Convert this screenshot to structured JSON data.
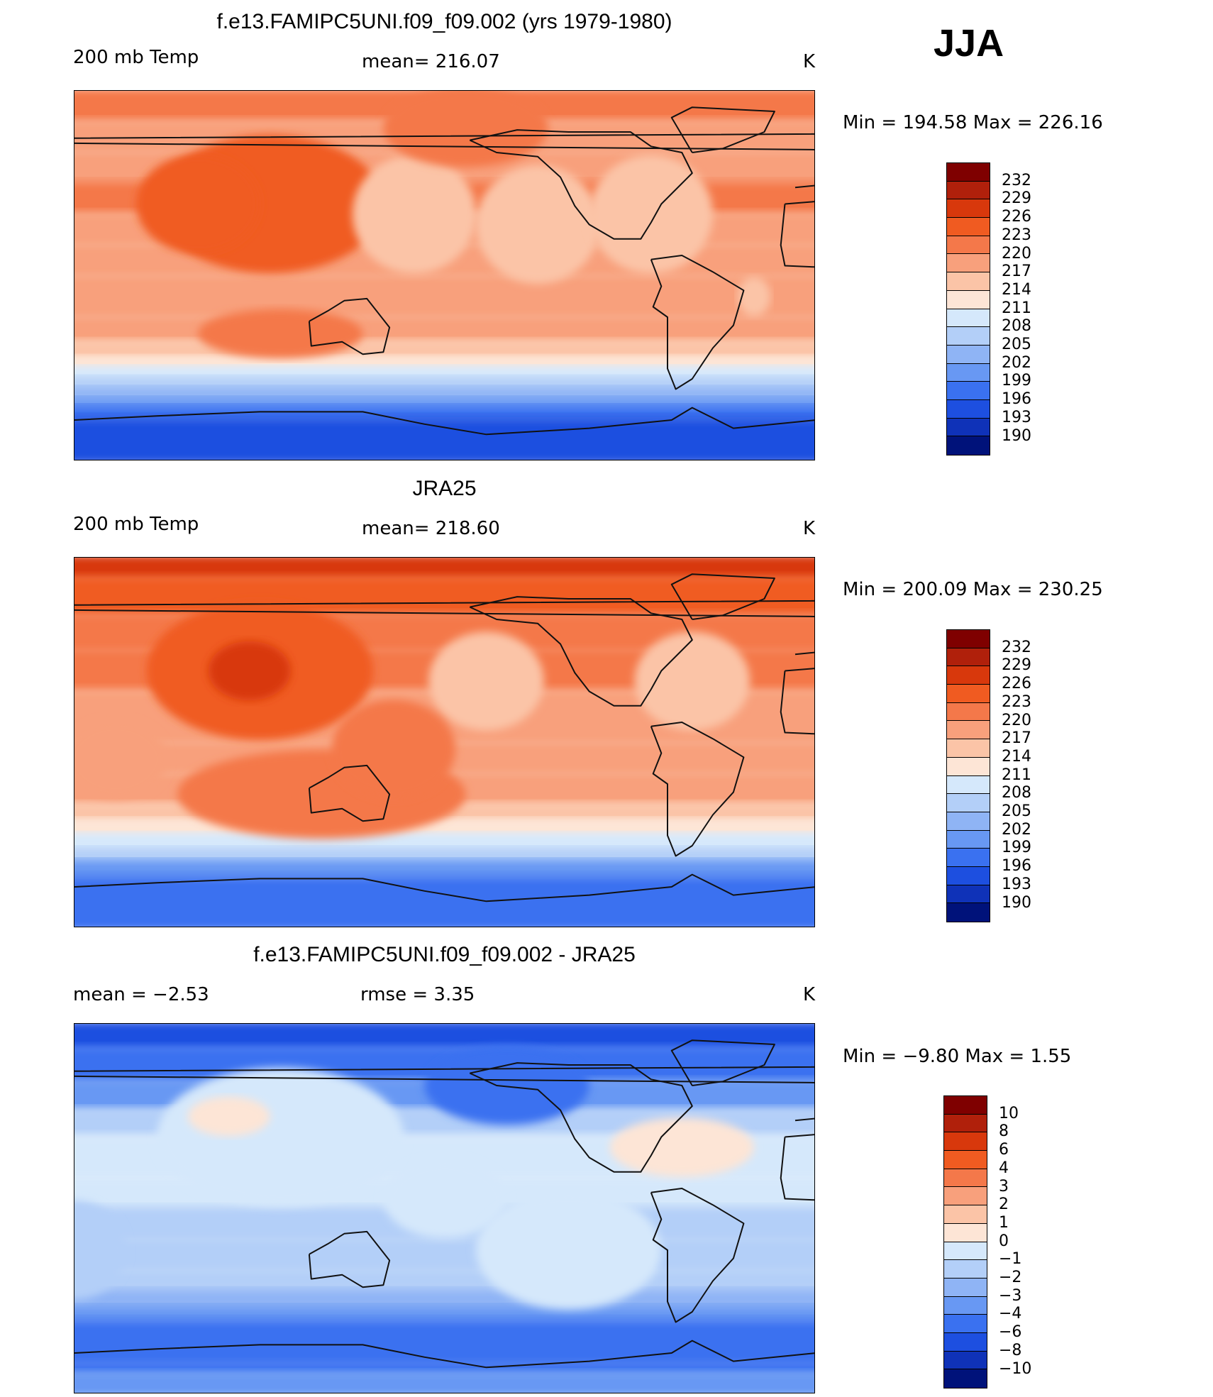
{
  "season": "JJA",
  "land_color": "#111111",
  "panels": [
    {
      "title": "f.e13.FAMIPC5UNI.f09_f09.002 (yrs 1979-1980)",
      "left_label": "200 mb Temp",
      "center_label": "mean=  216.07",
      "units": "K",
      "min_max": "Min  =  194.58  Max  =  226.16",
      "colorbar_labels": [
        "232",
        "229",
        "226",
        "223",
        "220",
        "217",
        "214",
        "211",
        "208",
        "205",
        "202",
        "199",
        "196",
        "193",
        "190"
      ],
      "colorbar_colors": [
        "#7f0000",
        "#b0200b",
        "#d8380c",
        "#f05b21",
        "#f4784a",
        "#f8a07c",
        "#fbc4a7",
        "#fde5d6",
        "#d5e8fb",
        "#b3cff8",
        "#8fb4f5",
        "#6898f3",
        "#3a71f0",
        "#1d4fe0",
        "#0f32b8",
        "#00127a"
      ],
      "field": "model"
    },
    {
      "title": "JRA25",
      "left_label": "200 mb Temp",
      "center_label": "mean=  218.60",
      "units": "K",
      "min_max": "Min  =  200.09  Max  =  230.25",
      "colorbar_labels": [
        "232",
        "229",
        "226",
        "223",
        "220",
        "217",
        "214",
        "211",
        "208",
        "205",
        "202",
        "199",
        "196",
        "193",
        "190"
      ],
      "colorbar_colors": [
        "#7f0000",
        "#b0200b",
        "#d8380c",
        "#f05b21",
        "#f4784a",
        "#f8a07c",
        "#fbc4a7",
        "#fde5d6",
        "#d5e8fb",
        "#b3cff8",
        "#8fb4f5",
        "#6898f3",
        "#3a71f0",
        "#1d4fe0",
        "#0f32b8",
        "#00127a"
      ],
      "field": "obs"
    },
    {
      "title": "f.e13.FAMIPC5UNI.f09_f09.002 - JRA25",
      "left_label": "mean  =     −2.53",
      "center_label": "rmse  =     3.35",
      "units": "K",
      "min_max": "Min  =    −9.80  Max  =      1.55",
      "colorbar_labels": [
        "10",
        "8",
        "6",
        "4",
        "3",
        "2",
        "1",
        "0",
        "−1",
        "−2",
        "−3",
        "−4",
        "−6",
        "−8",
        "−10"
      ],
      "colorbar_colors": [
        "#7f0000",
        "#b0200b",
        "#d8380c",
        "#f05b21",
        "#f4784a",
        "#f8a07c",
        "#fbc4a7",
        "#fde5d6",
        "#d5e8fb",
        "#b3cff8",
        "#8fb4f5",
        "#6898f3",
        "#3a71f0",
        "#1d4fe0",
        "#0f32b8",
        "#00127a"
      ],
      "field": "diff"
    }
  ]
}
